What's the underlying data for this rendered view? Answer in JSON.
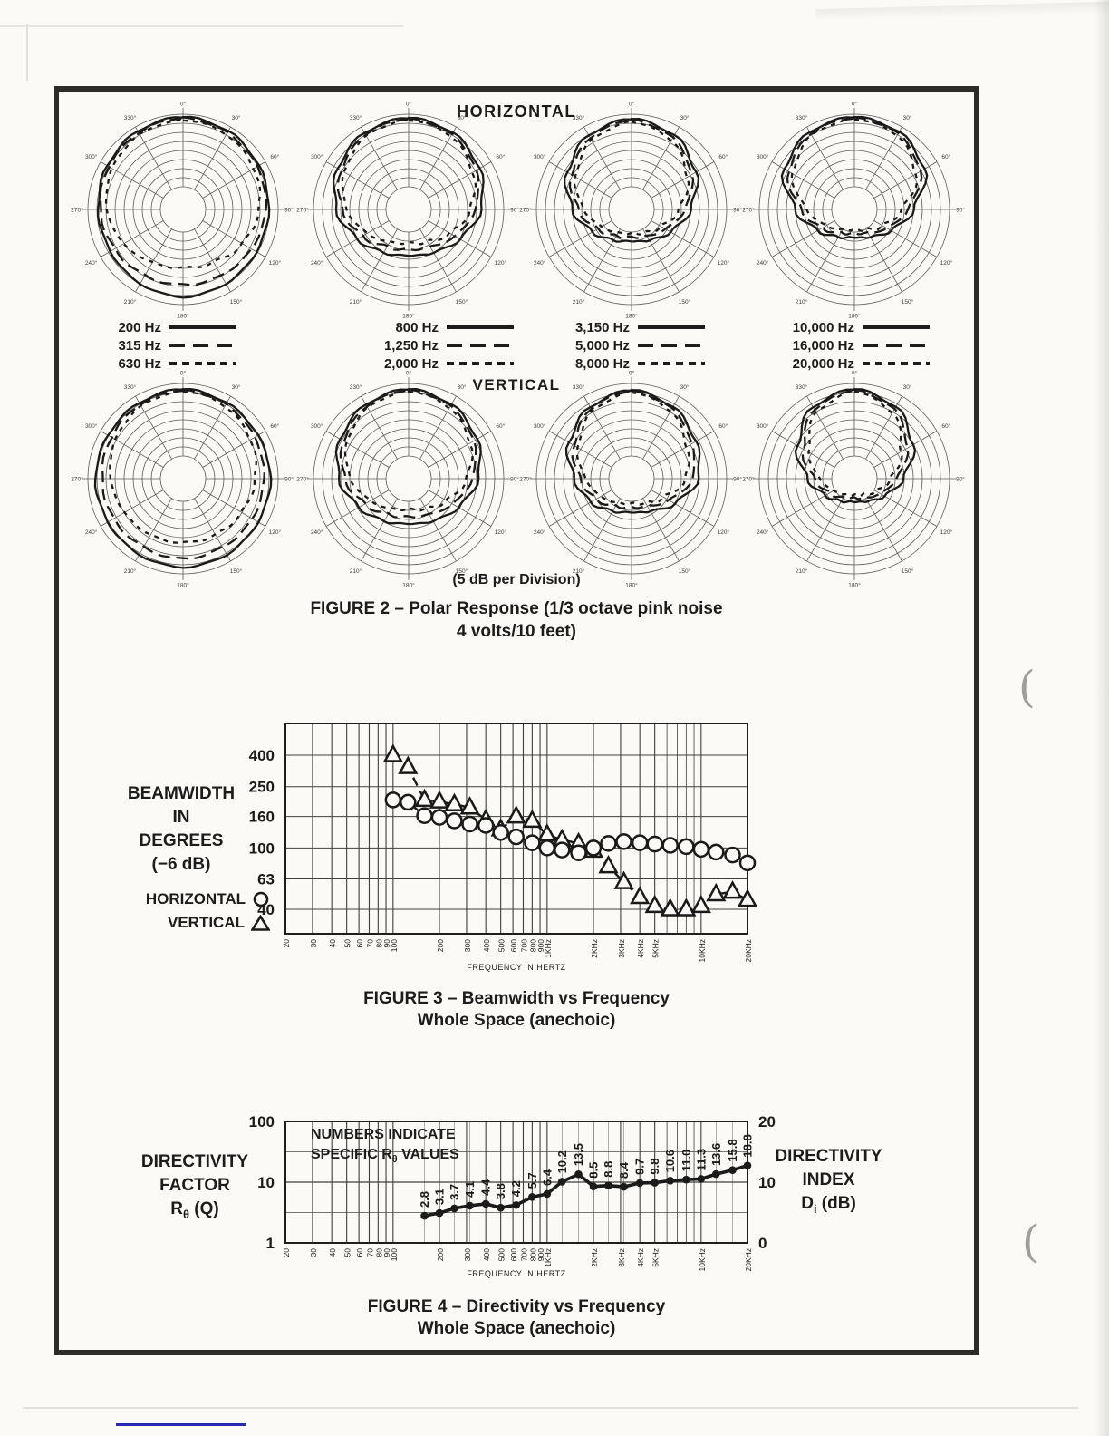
{
  "artifacts": {
    "curl_glyph": "("
  },
  "figure2": {
    "title_horizontal": "HORIZONTAL",
    "title_vertical": "VERTICAL",
    "division_note": "(5 dB per Division)",
    "caption_line1": "FIGURE 2 – Polar Response (1/3 octave pink noise",
    "caption_line2": "4 volts/10 feet)",
    "angle_labels": [
      "0°",
      "30°",
      "60°",
      "90°",
      "120°",
      "150°",
      "180°",
      "210°",
      "240°",
      "270°",
      "300°",
      "330°"
    ],
    "legend_groups": [
      {
        "items": [
          {
            "label": "200 Hz",
            "dash": "solid"
          },
          {
            "label": "315 Hz",
            "dash": "long"
          },
          {
            "label": "630 Hz",
            "dash": "short"
          }
        ]
      },
      {
        "items": [
          {
            "label": "800 Hz",
            "dash": "solid"
          },
          {
            "label": "1,250 Hz",
            "dash": "long"
          },
          {
            "label": "2,000 Hz",
            "dash": "short"
          }
        ]
      },
      {
        "items": [
          {
            "label": "3,150 Hz",
            "dash": "solid"
          },
          {
            "label": "5,000 Hz",
            "dash": "long"
          },
          {
            "label": "8,000 Hz",
            "dash": "short"
          }
        ]
      },
      {
        "items": [
          {
            "label": "10,000 Hz",
            "dash": "solid"
          },
          {
            "label": "16,000 Hz",
            "dash": "long"
          },
          {
            "label": "20,000 Hz",
            "dash": "short"
          }
        ]
      }
    ],
    "polar_plots": {
      "horizontal": [
        {
          "frequencies": [
            "200 Hz",
            "315 Hz",
            "630 Hz"
          ],
          "curves": [
            [
              0.97,
              0.95,
              0.92,
              0.9,
              0.89,
              0.9,
              0.92,
              0.9,
              0.88,
              0.89,
              0.92,
              0.95
            ],
            [
              0.96,
              0.93,
              0.9,
              0.87,
              0.83,
              0.8,
              0.79,
              0.8,
              0.83,
              0.87,
              0.9,
              0.93
            ],
            [
              0.94,
              0.91,
              0.86,
              0.8,
              0.72,
              0.64,
              0.61,
              0.64,
              0.72,
              0.8,
              0.86,
              0.91
            ]
          ]
        },
        {
          "frequencies": [
            "800 Hz",
            "1,250 Hz",
            "2,000 Hz"
          ],
          "curves": [
            [
              0.96,
              0.93,
              0.86,
              0.76,
              0.62,
              0.52,
              0.48,
              0.52,
              0.62,
              0.76,
              0.86,
              0.93
            ],
            [
              0.95,
              0.91,
              0.82,
              0.7,
              0.56,
              0.45,
              0.42,
              0.45,
              0.56,
              0.7,
              0.82,
              0.91
            ],
            [
              0.94,
              0.89,
              0.78,
              0.65,
              0.5,
              0.39,
              0.35,
              0.39,
              0.5,
              0.65,
              0.78,
              0.89
            ]
          ]
        },
        {
          "frequencies": [
            "3,150 Hz",
            "5,000 Hz",
            "8,000 Hz"
          ],
          "curves": [
            [
              0.95,
              0.9,
              0.78,
              0.62,
              0.47,
              0.37,
              0.33,
              0.37,
              0.47,
              0.62,
              0.78,
              0.9
            ],
            [
              0.94,
              0.87,
              0.73,
              0.56,
              0.41,
              0.32,
              0.29,
              0.32,
              0.41,
              0.56,
              0.73,
              0.87
            ],
            [
              0.92,
              0.84,
              0.68,
              0.5,
              0.36,
              0.28,
              0.25,
              0.28,
              0.36,
              0.5,
              0.68,
              0.84
            ]
          ]
        },
        {
          "frequencies": [
            "10,000 Hz",
            "16,000 Hz",
            "20,000 Hz"
          ],
          "curves": [
            [
              0.97,
              0.94,
              0.85,
              0.62,
              0.44,
              0.33,
              0.29,
              0.33,
              0.44,
              0.62,
              0.85,
              0.94
            ],
            [
              0.96,
              0.92,
              0.8,
              0.56,
              0.39,
              0.28,
              0.25,
              0.28,
              0.39,
              0.56,
              0.8,
              0.92
            ],
            [
              0.95,
              0.9,
              0.75,
              0.5,
              0.34,
              0.24,
              0.21,
              0.24,
              0.34,
              0.5,
              0.75,
              0.9
            ]
          ]
        }
      ],
      "vertical": [
        {
          "frequencies": [
            "200 Hz",
            "315 Hz",
            "630 Hz"
          ],
          "curves": [
            [
              0.94,
              0.92,
              0.91,
              0.92,
              0.91,
              0.92,
              0.93,
              0.92,
              0.91,
              0.92,
              0.91,
              0.92
            ],
            [
              0.93,
              0.9,
              0.87,
              0.85,
              0.84,
              0.83,
              0.84,
              0.83,
              0.84,
              0.85,
              0.87,
              0.9
            ],
            [
              0.92,
              0.88,
              0.82,
              0.76,
              0.71,
              0.68,
              0.67,
              0.68,
              0.71,
              0.76,
              0.82,
              0.88
            ]
          ]
        },
        {
          "frequencies": [
            "800 Hz",
            "1,250 Hz",
            "2,000 Hz"
          ],
          "curves": [
            [
              0.94,
              0.9,
              0.83,
              0.73,
              0.6,
              0.51,
              0.47,
              0.51,
              0.6,
              0.73,
              0.83,
              0.9
            ],
            [
              0.93,
              0.88,
              0.79,
              0.67,
              0.53,
              0.43,
              0.4,
              0.43,
              0.53,
              0.67,
              0.79,
              0.88
            ],
            [
              0.92,
              0.86,
              0.75,
              0.61,
              0.46,
              0.36,
              0.32,
              0.36,
              0.46,
              0.61,
              0.75,
              0.86
            ]
          ]
        },
        {
          "frequencies": [
            "3,150 Hz",
            "5,000 Hz",
            "8,000 Hz"
          ],
          "curves": [
            [
              0.93,
              0.87,
              0.78,
              0.7,
              0.52,
              0.39,
              0.35,
              0.39,
              0.49,
              0.6,
              0.76,
              0.87
            ],
            [
              0.92,
              0.85,
              0.73,
              0.64,
              0.45,
              0.33,
              0.3,
              0.33,
              0.43,
              0.54,
              0.7,
              0.85
            ],
            [
              0.91,
              0.82,
              0.67,
              0.57,
              0.39,
              0.29,
              0.26,
              0.29,
              0.37,
              0.48,
              0.65,
              0.82
            ]
          ]
        },
        {
          "frequencies": [
            "10,000 Hz",
            "16,000 Hz",
            "20,000 Hz"
          ],
          "curves": [
            [
              0.94,
              0.87,
              0.71,
              0.51,
              0.36,
              0.27,
              0.24,
              0.27,
              0.35,
              0.49,
              0.69,
              0.87
            ],
            [
              0.93,
              0.84,
              0.64,
              0.44,
              0.31,
              0.23,
              0.2,
              0.23,
              0.3,
              0.42,
              0.62,
              0.84
            ],
            [
              0.92,
              0.8,
              0.57,
              0.38,
              0.26,
              0.19,
              0.17,
              0.19,
              0.25,
              0.36,
              0.55,
              0.8
            ]
          ]
        }
      ]
    }
  },
  "figure3": {
    "side_label_lines": [
      "BEAMWIDTH",
      "IN",
      "DEGREES",
      "(−6 dB)"
    ],
    "legend_horizontal": "HORIZONTAL",
    "legend_vertical": "VERTICAL",
    "xaxis_title": "FREQUENCY IN HERTZ",
    "caption_line1": "FIGURE 3 – Beamwidth vs Frequency",
    "caption_line2": "Whole Space (anechoic)"
  },
  "figure4": {
    "note_line1": "NUMBERS INDICATE",
    "note_line2_prefix": "SPECIFIC R",
    "note_line2_sub": "θ",
    "note_line2_suffix": " VALUES",
    "left_label_line1": "DIRECTIVITY",
    "left_label_line2": "FACTOR",
    "left_sym_base": "R",
    "left_sym_sub": "θ",
    "left_sym_suffix": " (Q)",
    "right_label_line1": "DIRECTIVITY",
    "right_label_line2": "INDEX",
    "right_sym_base": "D",
    "right_sym_sub": "i",
    "right_sym_suffix": " (dB)",
    "xaxis_title": "FREQUENCY IN HERTZ",
    "caption_line1": "FIGURE 4 – Directivity vs Frequency",
    "caption_line2": "Whole Space (anechoic)"
  },
  "chart_data": [
    {
      "id": "figure3",
      "type": "line",
      "title": "Beamwidth vs Frequency, Whole Space (anechoic)",
      "x_scale": "log",
      "y_scale": "log",
      "ylabel": "Beamwidth in degrees (−6 dB)",
      "xlabel": "FREQUENCY IN HERTZ",
      "y_ticks": [
        400,
        250,
        160,
        100,
        63,
        40
      ],
      "x_tick_labels": [
        "20",
        "30",
        "40",
        "50",
        "60",
        "70",
        "80",
        "90",
        "100",
        "200",
        "300",
        "400",
        "500",
        "600",
        "700",
        "800",
        "900",
        "1KHz",
        "2KHz",
        "3KHz",
        "4KHz",
        "5KHz",
        "10KHz",
        "20KHz"
      ],
      "x_tick_freqs": [
        20,
        30,
        40,
        50,
        60,
        70,
        80,
        90,
        100,
        200,
        300,
        400,
        500,
        600,
        700,
        800,
        900,
        1000,
        2000,
        3000,
        4000,
        5000,
        10000,
        20000
      ],
      "series": [
        {
          "name": "HORIZONTAL",
          "marker": "circle",
          "line": "solid",
          "x": [
            100,
            125,
            160,
            200,
            250,
            315,
            400,
            500,
            630,
            800,
            1000,
            1250,
            1600,
            2000,
            2500,
            3150,
            4000,
            5000,
            6300,
            8000,
            10000,
            12500,
            16000,
            20000
          ],
          "y": [
            205,
            198,
            162,
            158,
            150,
            143,
            140,
            126,
            118,
            108,
            100,
            97,
            93,
            100,
            107,
            110,
            108,
            106,
            104,
            102,
            98,
            94,
            90,
            80
          ]
        },
        {
          "name": "VERTICAL",
          "marker": "triangle",
          "line": "dashed",
          "x": [
            100,
            125,
            160,
            200,
            250,
            315,
            400,
            500,
            630,
            800,
            1000,
            1250,
            1600,
            2000,
            2500,
            3150,
            4000,
            5000,
            6300,
            8000,
            10000,
            12500,
            16000,
            20000
          ],
          "y": [
            400,
            335,
            205,
            200,
            192,
            183,
            152,
            132,
            160,
            150,
            122,
            113,
            107,
            96,
            76,
            60,
            48,
            42,
            40,
            40,
            42,
            50,
            52,
            46
          ]
        }
      ]
    },
    {
      "id": "figure4",
      "type": "line",
      "title": "Directivity vs Frequency, Whole Space (anechoic)",
      "x_scale": "log",
      "y_scale": "log",
      "left_axis_ticks": [
        100,
        10,
        1
      ],
      "right_axis_ticks": [
        20,
        10,
        0
      ],
      "x_tick_labels": [
        "20",
        "30",
        "40",
        "50",
        "60",
        "70",
        "80",
        "90",
        "100",
        "200",
        "300",
        "400",
        "500",
        "600",
        "700",
        "800",
        "900",
        "1KHz",
        "2KHz",
        "3KHz",
        "4KHz",
        "5KHz",
        "10KHz",
        "20KHz"
      ],
      "x_tick_freqs": [
        20,
        30,
        40,
        50,
        60,
        70,
        80,
        90,
        100,
        200,
        300,
        400,
        500,
        600,
        700,
        800,
        900,
        1000,
        2000,
        3000,
        4000,
        5000,
        10000,
        20000
      ],
      "series": [
        {
          "name": "Rθ",
          "marker": "dot",
          "line": "solid",
          "x": [
            160,
            200,
            250,
            315,
            400,
            500,
            630,
            800,
            1000,
            1250,
            1600,
            2000,
            2500,
            3150,
            4000,
            5000,
            6300,
            8000,
            10000,
            12500,
            16000,
            20000
          ],
          "y": [
            2.8,
            3.1,
            3.7,
            4.1,
            4.4,
            3.8,
            4.2,
            5.7,
            6.4,
            10.2,
            13.5,
            8.5,
            8.8,
            8.4,
            9.7,
            9.8,
            10.6,
            11.0,
            11.3,
            13.6,
            15.8,
            18.8
          ],
          "labels": [
            "2.8",
            "3.1",
            "3.7",
            "4.1",
            "4.4",
            "3.8",
            "4.2",
            "5.7",
            "6.4",
            "10.2",
            "13.5",
            "8.5",
            "8.8",
            "8.4",
            "9.7",
            "9.8",
            "10.6",
            "11.0",
            "11.3",
            "13.6",
            "15.8",
            "18.8"
          ]
        }
      ]
    }
  ]
}
